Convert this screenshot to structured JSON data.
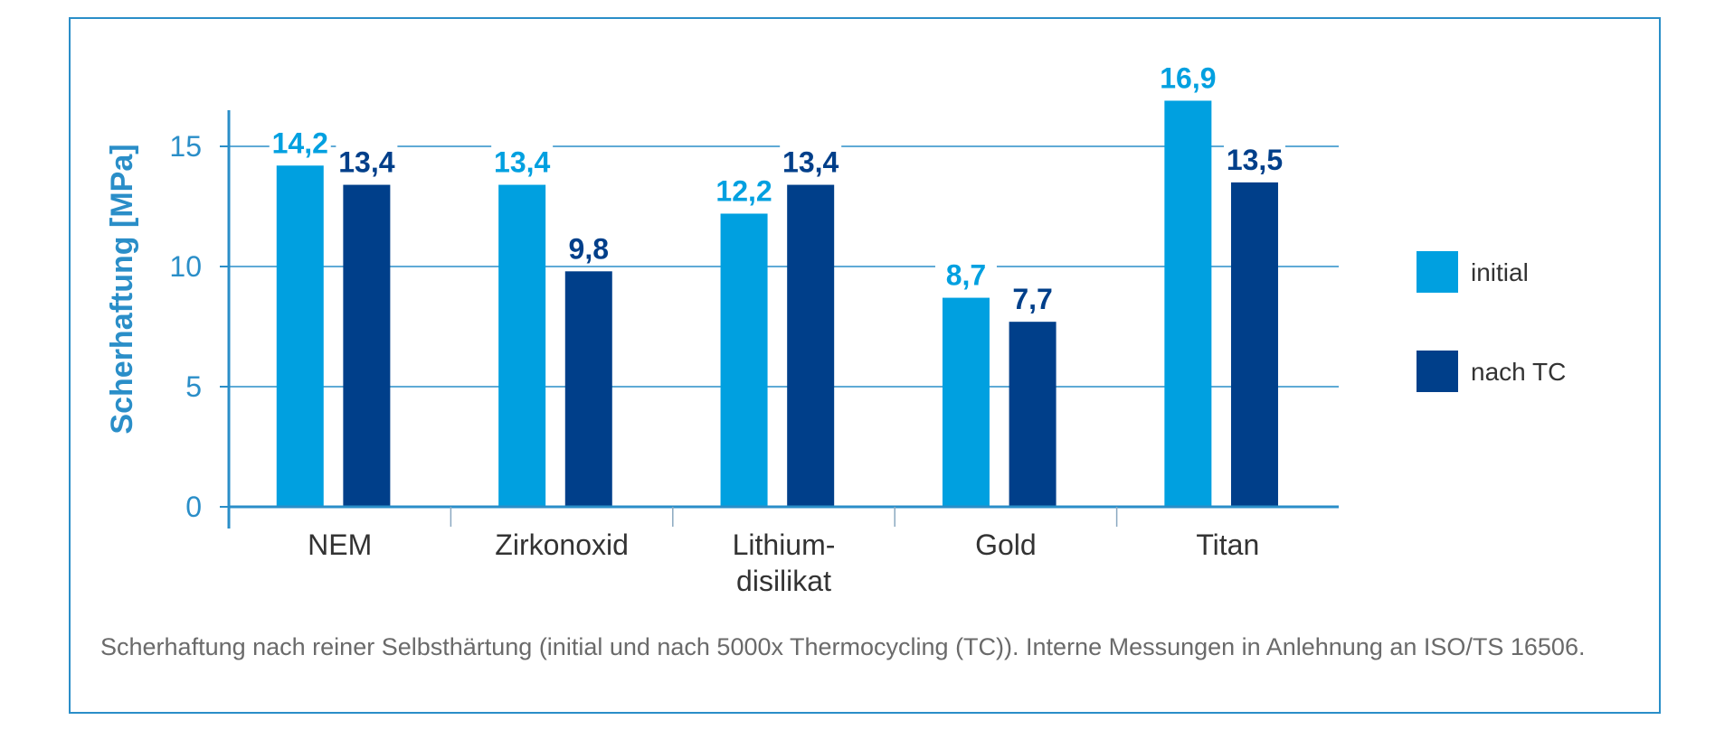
{
  "caption": "Scherhaftung nach reiner Selbsthärtung (initial und nach 5000x Thermocycling (TC)). Interne Messungen in Anlehnung an ISO/TS 16506.",
  "colors": {
    "initial": "#00a0e0",
    "nach_tc": "#003f8a",
    "axis": "#2a8ec8",
    "frame": "#2a8ec8"
  },
  "chart_data": {
    "type": "bar",
    "title": "",
    "xlabel": "",
    "ylabel": "Scherhaftung [MPa]",
    "ylim": [
      0,
      17
    ],
    "yticks": [
      0,
      5,
      10,
      15
    ],
    "ytick_labels": [
      "0",
      "5",
      "10",
      "15"
    ],
    "grid": true,
    "legend_position": "right",
    "categories": [
      "NEM",
      "Zirkonoxid",
      "Lithium-\ndisilikat",
      "Gold",
      "Titan"
    ],
    "category_lines": [
      [
        "NEM"
      ],
      [
        "Zirkonoxid"
      ],
      [
        "Lithium-",
        "disilikat"
      ],
      [
        "Gold"
      ],
      [
        "Titan"
      ]
    ],
    "series": [
      {
        "name": "initial",
        "values": [
          14.2,
          13.4,
          12.2,
          8.7,
          16.9
        ],
        "labels": [
          "14,2",
          "13,4",
          "12,2",
          "8,7",
          "16,9"
        ]
      },
      {
        "name": "nach TC",
        "values": [
          13.4,
          9.8,
          13.4,
          7.7,
          13.5
        ],
        "labels": [
          "13,4",
          "9,8",
          "13,4",
          "7,7",
          "13,5"
        ]
      }
    ]
  }
}
